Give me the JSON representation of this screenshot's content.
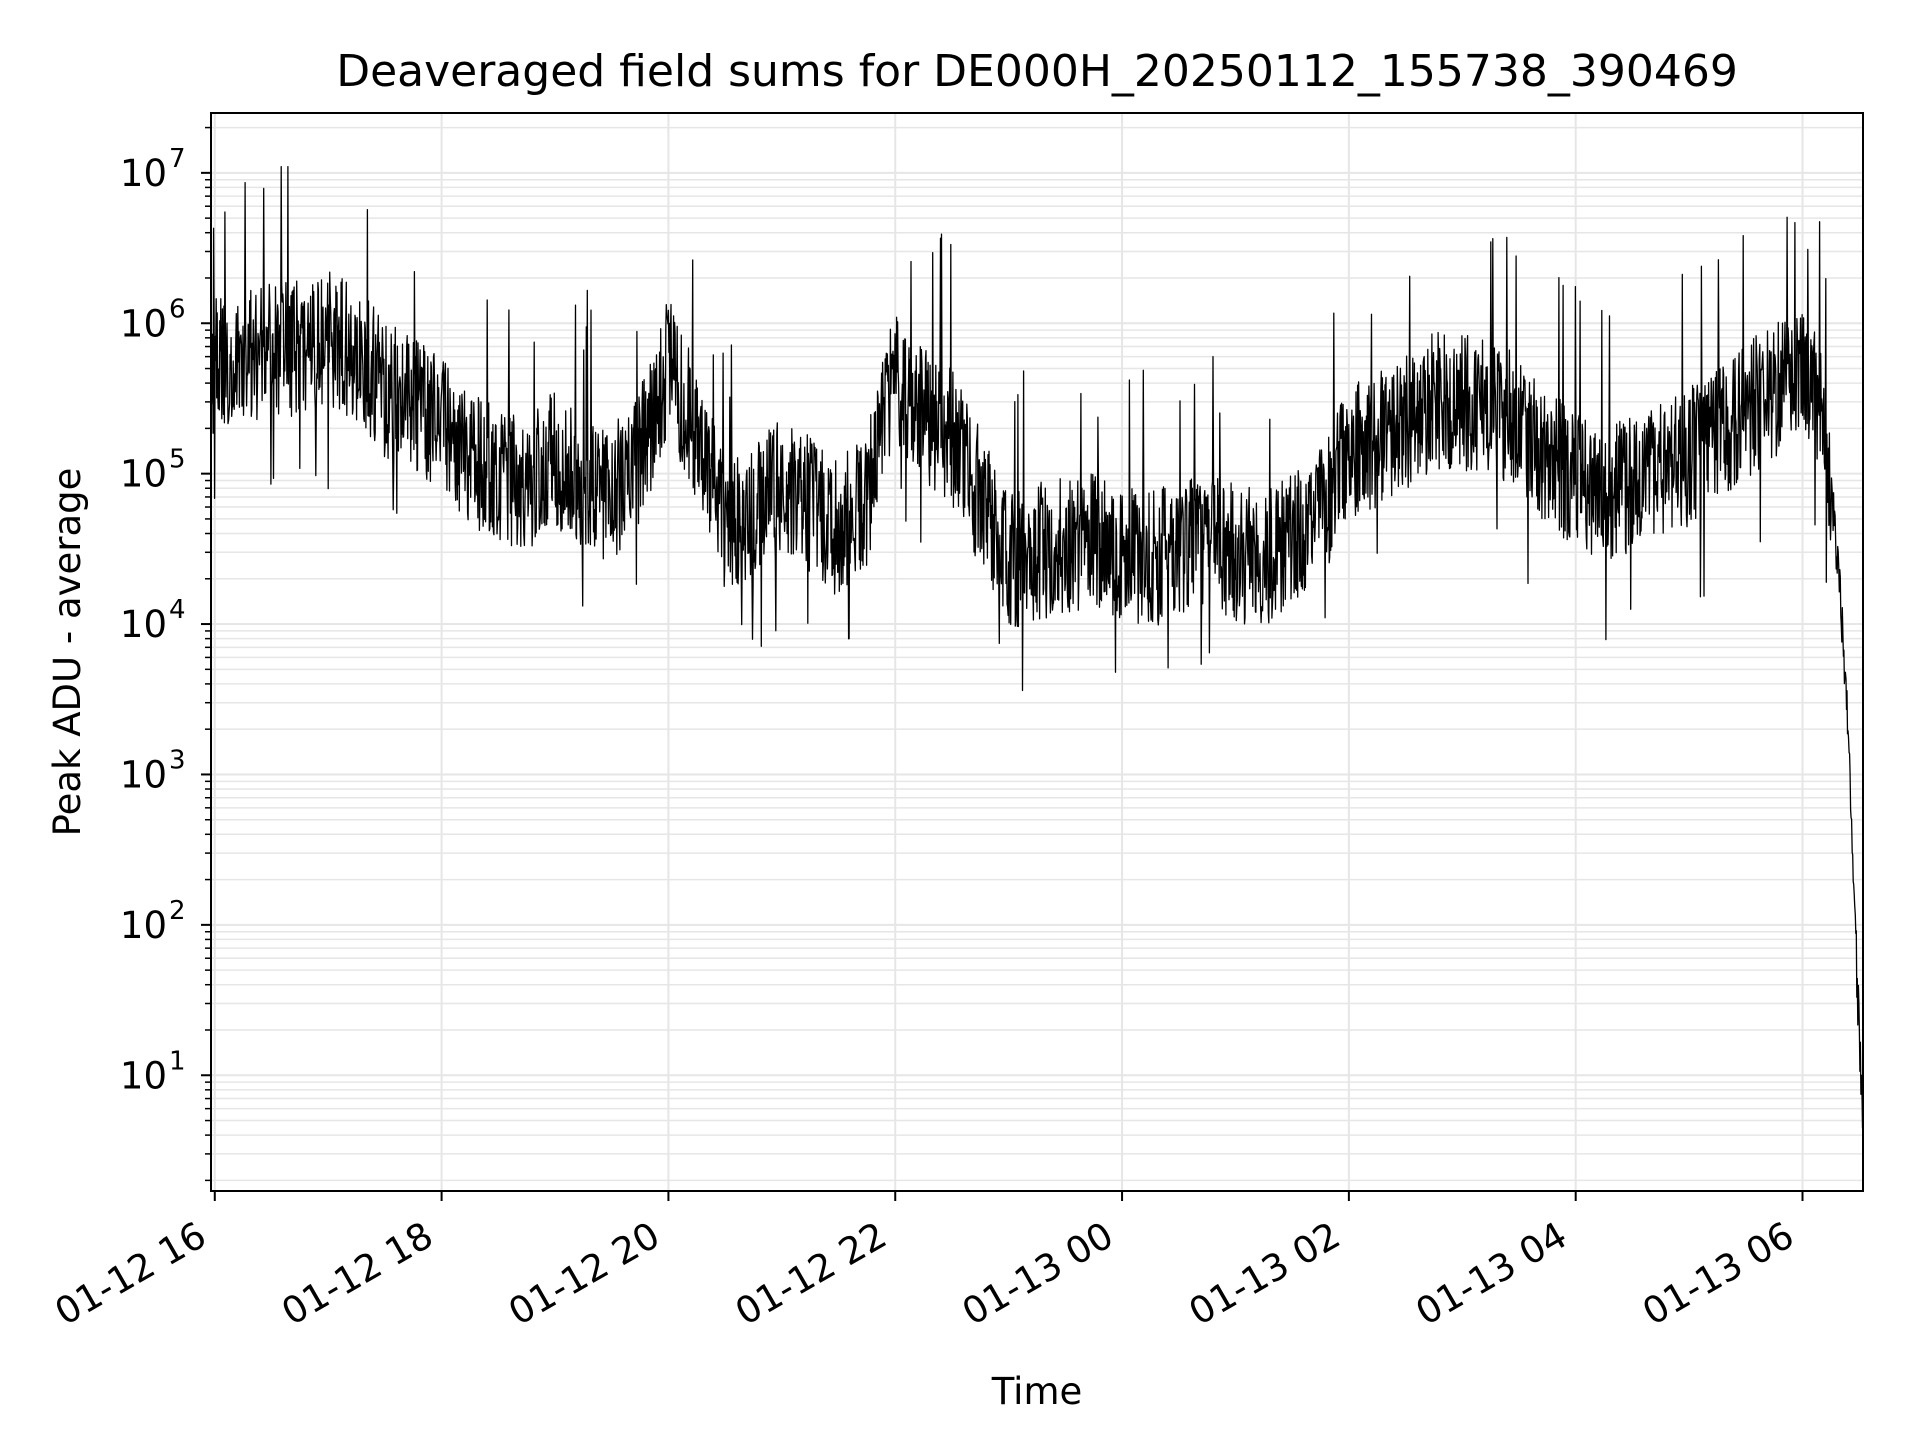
{
  "chart_data": {
    "type": "line",
    "title": "Deaveraged field sums for DE000H_20250112_155738_390469",
    "xlabel": "Time",
    "ylabel": "Peak ADU - average",
    "y_scale": "log",
    "ylim": [
      1.7,
      25000000
    ],
    "xlim": [
      "2025-01-12 15:58",
      "2025-01-13 06:32"
    ],
    "grid": true,
    "grid_minor": true,
    "legend": "none",
    "line_color": "#000000",
    "grid_color": "#e6e6e6",
    "x_tick_labels": [
      {
        "value": "2025-01-12 16:00",
        "label": "01-12 16"
      },
      {
        "value": "2025-01-12 18:00",
        "label": "01-12 18"
      },
      {
        "value": "2025-01-12 20:00",
        "label": "01-12 20"
      },
      {
        "value": "2025-01-12 22:00",
        "label": "01-12 22"
      },
      {
        "value": "2025-01-13 00:00",
        "label": "01-13 00"
      },
      {
        "value": "2025-01-13 02:00",
        "label": "01-13 02"
      },
      {
        "value": "2025-01-13 04:00",
        "label": "01-13 04"
      },
      {
        "value": "2025-01-13 06:00",
        "label": "01-13 06"
      }
    ],
    "y_tick_labels": [
      {
        "value": 10,
        "base": "10",
        "exp": "1"
      },
      {
        "value": 100,
        "base": "10",
        "exp": "2"
      },
      {
        "value": 1000,
        "base": "10",
        "exp": "3"
      },
      {
        "value": 10000,
        "base": "10",
        "exp": "4"
      },
      {
        "value": 100000,
        "base": "10",
        "exp": "5"
      },
      {
        "value": 1000000,
        "base": "10",
        "exp": "6"
      },
      {
        "value": 10000000,
        "base": "10",
        "exp": "7"
      }
    ],
    "series": [
      {
        "x": [
          "2025-01-12 15:58",
          "2025-01-12 16:15",
          "2025-01-12 16:30",
          "2025-01-12 16:45",
          "2025-01-12 17:00",
          "2025-01-12 17:15",
          "2025-01-12 17:30",
          "2025-01-12 17:45",
          "2025-01-12 18:00",
          "2025-01-12 18:15",
          "2025-01-12 18:30",
          "2025-01-12 18:45",
          "2025-01-12 19:00",
          "2025-01-12 19:15",
          "2025-01-12 19:30",
          "2025-01-12 19:45",
          "2025-01-12 20:00",
          "2025-01-12 20:15",
          "2025-01-12 20:30",
          "2025-01-12 20:45",
          "2025-01-12 21:00",
          "2025-01-12 21:15",
          "2025-01-12 21:30",
          "2025-01-12 21:45",
          "2025-01-12 22:00",
          "2025-01-12 22:15",
          "2025-01-12 22:30",
          "2025-01-12 22:45",
          "2025-01-12 23:00",
          "2025-01-12 23:15",
          "2025-01-12 23:30",
          "2025-01-12 23:45",
          "2025-01-13 00:00",
          "2025-01-13 00:15",
          "2025-01-13 00:30",
          "2025-01-13 00:45",
          "2025-01-13 01:00",
          "2025-01-13 01:15",
          "2025-01-13 01:30",
          "2025-01-13 01:45",
          "2025-01-13 02:00",
          "2025-01-13 02:15",
          "2025-01-13 02:30",
          "2025-01-13 02:45",
          "2025-01-13 03:00",
          "2025-01-13 03:15",
          "2025-01-13 03:30",
          "2025-01-13 03:45",
          "2025-01-13 04:00",
          "2025-01-13 04:15",
          "2025-01-13 04:30",
          "2025-01-13 04:45",
          "2025-01-13 05:00",
          "2025-01-13 05:15",
          "2025-01-13 05:30",
          "2025-01-13 05:45",
          "2025-01-13 06:00",
          "2025-01-13 06:10",
          "2025-01-13 06:15",
          "2025-01-13 06:20",
          "2025-01-13 06:24",
          "2025-01-13 06:27",
          "2025-01-13 06:30",
          "2025-01-13 06:32"
        ],
        "y": [
          600000,
          700000,
          750000,
          800000,
          900000,
          750000,
          400000,
          350000,
          250000,
          150000,
          120000,
          100000,
          150000,
          100000,
          80000,
          150000,
          600000,
          200000,
          50000,
          60000,
          100000,
          70000,
          50000,
          80000,
          500000,
          300000,
          200000,
          80000,
          30000,
          35000,
          40000,
          40000,
          35000,
          32000,
          35000,
          40000,
          35000,
          30000,
          40000,
          60000,
          150000,
          200000,
          250000,
          350000,
          350000,
          300000,
          250000,
          150000,
          100000,
          80000,
          100000,
          120000,
          150000,
          200000,
          300000,
          400000,
          500000,
          300000,
          80000,
          20000,
          2000,
          200,
          20,
          4
        ],
        "noise_envelope": {
          "low_factor": 0.3,
          "high_factor": 2.5,
          "spike_peak_max": 11000000
        }
      }
    ]
  }
}
